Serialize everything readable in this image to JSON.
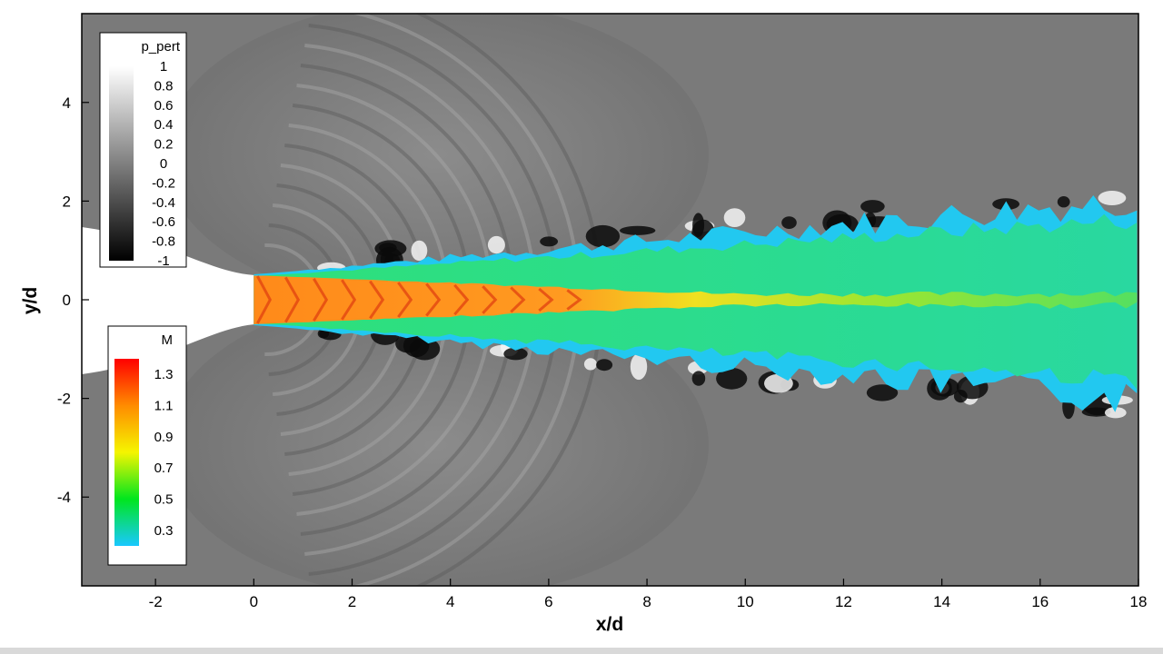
{
  "chart_data": {
    "type": "heatmap",
    "title": "",
    "xlabel": "x/d",
    "ylabel": "y/d",
    "xlim": [
      -3.5,
      18
    ],
    "ylim": [
      -5.8,
      5.8
    ],
    "xticks": [
      -2,
      0,
      2,
      4,
      6,
      8,
      10,
      12,
      14,
      16,
      18
    ],
    "yticks": [
      -4,
      -2,
      0,
      2,
      4
    ],
    "grid": false,
    "fields": [
      {
        "name": "p_pert",
        "colormap": "grayscale",
        "range": [
          -1,
          1
        ],
        "ticks": [
          1,
          0.8,
          0.6,
          0.4,
          0.2,
          0,
          -0.2,
          -0.4,
          -0.6,
          -0.8,
          -1
        ],
        "legend_position": "top-left",
        "colors": [
          "#000000",
          "#ffffff"
        ]
      },
      {
        "name": "M",
        "colormap": "rainbow",
        "range": [
          0.2,
          1.4
        ],
        "ticks": [
          1.3,
          1.1,
          0.9,
          0.7,
          0.5,
          0.3
        ],
        "legend_position": "middle-left",
        "colors": [
          "#19c8ff",
          "#00e61e",
          "#f5f500",
          "#ff8c00",
          "#ff0000"
        ]
      }
    ],
    "nozzle": {
      "exit_x": 0,
      "exit_half_width": 0.5
    }
  }
}
